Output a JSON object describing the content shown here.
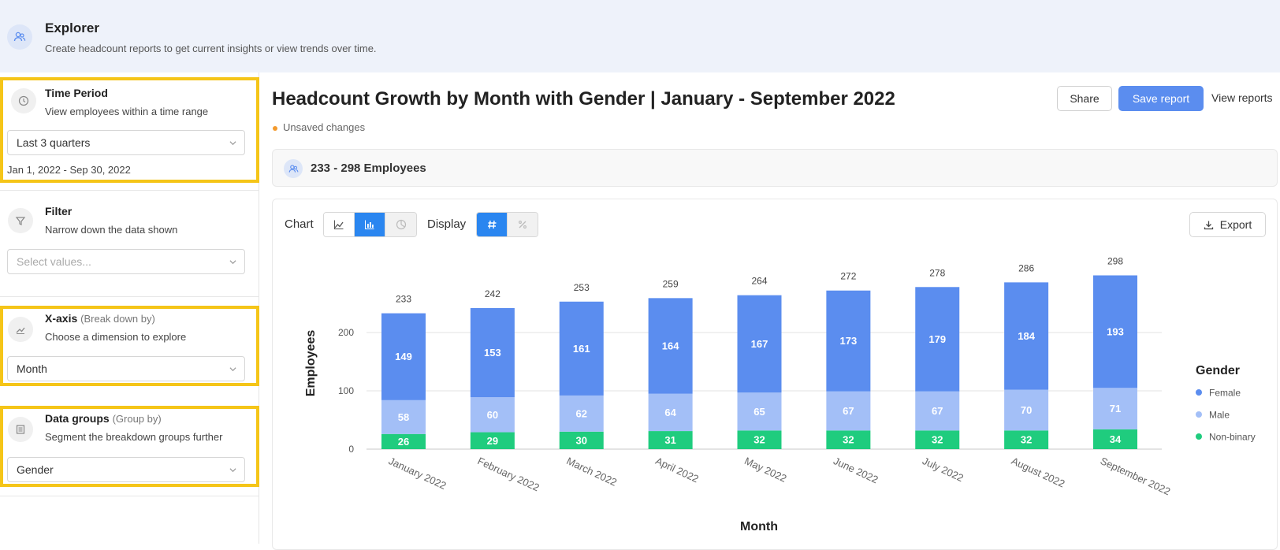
{
  "header": {
    "title": "Explorer",
    "subtitle": "Create headcount reports to get current insights or view trends over time."
  },
  "sidebar": {
    "time_period": {
      "title": "Time Period",
      "description": "View employees within a time range",
      "value": "Last 3 quarters",
      "date_range": "Jan 1, 2022 - Sep 30, 2022"
    },
    "filter": {
      "title": "Filter",
      "description": "Narrow down the data shown",
      "placeholder": "Select values..."
    },
    "x_axis": {
      "title": "X-axis",
      "title_aux": "(Break down by)",
      "description": "Choose a dimension to explore",
      "value": "Month"
    },
    "data_groups": {
      "title": "Data groups",
      "title_aux": "(Group by)",
      "description": "Segment the breakdown groups further",
      "value": "Gender"
    }
  },
  "main": {
    "title": "Headcount Growth by Month with Gender | January - September 2022",
    "unsaved": "Unsaved changes",
    "share_label": "Share",
    "save_label": "Save report",
    "view_reports_label": "View reports",
    "summary": "233 - 298 Employees",
    "chart_label": "Chart",
    "display_label": "Display",
    "export_label": "Export",
    "chart_type_options": [
      "line-chart-icon",
      "bar-chart-icon",
      "pie-chart-icon"
    ],
    "display_options": [
      "hash-icon",
      "percent-icon"
    ]
  },
  "colors": {
    "female": "#5b8def",
    "male": "#a3bff7",
    "non_binary": "#1fcc7e",
    "accent": "#2a86f0",
    "highlight": "#f5c518"
  },
  "chart_data": {
    "type": "bar",
    "stacked": true,
    "categories": [
      "January 2022",
      "February 2022",
      "March 2022",
      "April 2022",
      "May 2022",
      "June 2022",
      "July 2022",
      "August 2022",
      "September 2022"
    ],
    "series": [
      {
        "name": "Non-binary",
        "values": [
          26,
          29,
          30,
          31,
          32,
          32,
          32,
          32,
          34
        ]
      },
      {
        "name": "Male",
        "values": [
          58,
          60,
          62,
          64,
          65,
          67,
          67,
          70,
          71
        ]
      },
      {
        "name": "Female",
        "values": [
          149,
          153,
          161,
          164,
          167,
          173,
          179,
          184,
          193
        ]
      }
    ],
    "totals": [
      233,
      242,
      253,
      259,
      264,
      272,
      278,
      286,
      298
    ],
    "xlabel": "Month",
    "ylabel": "Employees",
    "ylim": [
      0,
      300
    ],
    "yticks": [
      0,
      100,
      200
    ],
    "legend_title": "Gender",
    "legend_entries": [
      "Female",
      "Male",
      "Non-binary"
    ],
    "legend_position": "right",
    "grid": true
  }
}
